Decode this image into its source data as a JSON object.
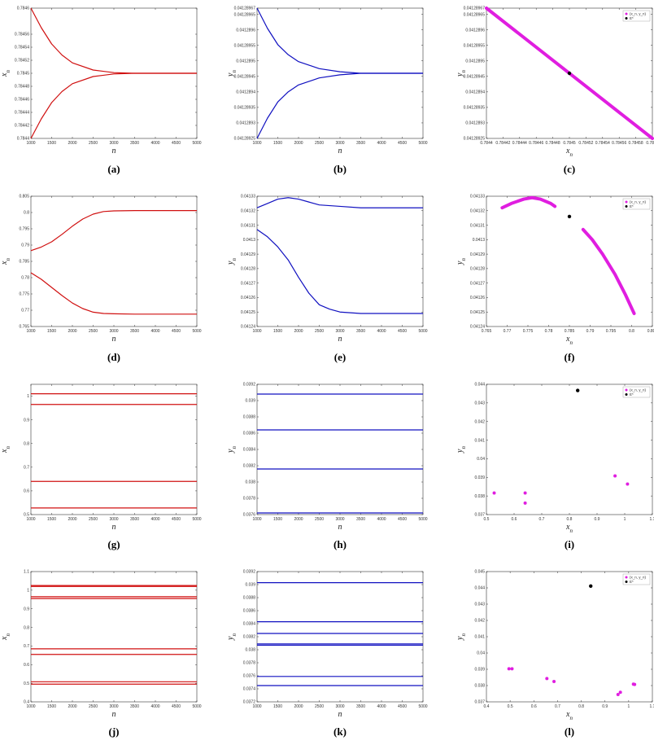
{
  "chart_data": [
    {
      "id": "a",
      "caption": "(a)",
      "type": "line",
      "xlabel": "n",
      "ylabel": "x_n",
      "xlim": [
        1000,
        5000
      ],
      "ylim": [
        0.7844,
        0.7846
      ],
      "xticks": [
        1000,
        1500,
        2000,
        2500,
        3000,
        3500,
        4000,
        4500,
        5000
      ],
      "yticks": [
        0.7844,
        0.78442,
        0.78444,
        0.78446,
        0.78448,
        0.7845,
        0.78452,
        0.78454,
        0.78456,
        0.7846
      ],
      "color": "#d01010",
      "series": [
        {
          "x": [
            1000,
            1250,
            1500,
            1750,
            2000,
            2500,
            3000,
            3500,
            4000,
            5000
          ],
          "y": [
            0.7846,
            0.78457,
            0.784545,
            0.784528,
            0.784516,
            0.784505,
            0.784501,
            0.7845,
            0.7845,
            0.7845
          ]
        },
        {
          "x": [
            1000,
            1250,
            1500,
            1750,
            2000,
            2500,
            3000,
            3500,
            4000,
            5000
          ],
          "y": [
            0.7844,
            0.78443,
            0.784455,
            0.784472,
            0.784484,
            0.784495,
            0.784499,
            0.7845,
            0.7845,
            0.7845
          ]
        }
      ]
    },
    {
      "id": "b",
      "caption": "(b)",
      "type": "line",
      "xlabel": "n",
      "ylabel": "y_n",
      "xlim": [
        1000,
        5000
      ],
      "ylim": [
        0.04128925,
        0.04128967
      ],
      "xticks": [
        1000,
        1500,
        2000,
        2500,
        3000,
        3500,
        4000,
        4500,
        5000
      ],
      "yticks": [
        0.04128925,
        0.0412893,
        0.04128935,
        0.0412894,
        0.04128945,
        0.0412895,
        0.04128955,
        0.0412896,
        0.04128965,
        0.04128967
      ],
      "ytick_labels": [
        "0.04128925",
        "0.0412893",
        "0.04128935",
        "0.0412894",
        "0.04128945",
        "0.0412895",
        "0.04128955",
        "0.0412896",
        "0.04128965",
        "0.04128967"
      ],
      "color": "#1010c0",
      "series": [
        {
          "x": [
            1000,
            1250,
            1500,
            1750,
            2000,
            2500,
            3000,
            3500,
            4000,
            5000
          ],
          "y": [
            0.04128967,
            0.041289605,
            0.0412895525,
            0.04128952,
            0.0412894975,
            0.041289475,
            0.041289465,
            0.04128946,
            0.04128946,
            0.04128946
          ]
        },
        {
          "x": [
            1000,
            1250,
            1500,
            1750,
            2000,
            2500,
            3000,
            3500,
            4000,
            5000
          ],
          "y": [
            0.04128925,
            0.041289315,
            0.0412893675,
            0.0412894,
            0.0412894225,
            0.041289445,
            0.041289455,
            0.04128946,
            0.04128946,
            0.04128946
          ]
        }
      ]
    },
    {
      "id": "c",
      "caption": "(c)",
      "type": "scatter",
      "xlabel": "x_n",
      "ylabel": "y_n",
      "xlim": [
        0.7844,
        0.7846
      ],
      "ylim": [
        0.04128925,
        0.04128967
      ],
      "xticks": [
        0.7844,
        0.78442,
        0.78444,
        0.78446,
        0.78448,
        0.7845,
        0.78452,
        0.78454,
        0.78456,
        0.78458,
        0.7846
      ],
      "xtick_labels": [
        "0.7844",
        "0.78442",
        "0.78444",
        "0.78446",
        "0.78448",
        "0.7845",
        "0.78452",
        "0.78454",
        "0.78456",
        "0.78458",
        "0.7846"
      ],
      "yticks": [
        0.04128925,
        0.0412893,
        0.04128935,
        0.0412894,
        0.04128945,
        0.0412895,
        0.04128955,
        0.0412896,
        0.04128965,
        0.04128967
      ],
      "ytick_labels": [
        "0.04128925",
        "0.0412893",
        "0.04128935",
        "0.0412894",
        "0.04128945",
        "0.0412895",
        "0.04128955",
        "0.0412896",
        "0.04128965",
        "0.04128967"
      ],
      "legend": [
        "(x_n, y_n)",
        "E*"
      ],
      "legend_position": "top-right",
      "magenta_segments": [
        {
          "x": [
            0.7844,
            0.7846
          ],
          "y": [
            0.04128967,
            0.04128925
          ]
        }
      ],
      "fixed_point": {
        "x": 0.7845,
        "y": 0.04128946
      }
    },
    {
      "id": "d",
      "caption": "(d)",
      "type": "line",
      "xlabel": "n",
      "ylabel": "x_n",
      "xlim": [
        1000,
        5000
      ],
      "ylim": [
        0.765,
        0.805
      ],
      "xticks": [
        1000,
        1500,
        2000,
        2500,
        3000,
        3500,
        4000,
        4500,
        5000
      ],
      "yticks": [
        0.765,
        0.77,
        0.775,
        0.78,
        0.785,
        0.79,
        0.795,
        0.8,
        0.805
      ],
      "color": "#d01010",
      "series": [
        {
          "x": [
            1000,
            1250,
            1500,
            1750,
            2000,
            2250,
            2500,
            2750,
            3000,
            3500,
            4000,
            5000
          ],
          "y": [
            0.7883,
            0.7894,
            0.791,
            0.7933,
            0.7958,
            0.798,
            0.7995,
            0.8003,
            0.8005,
            0.8006,
            0.8006,
            0.8006
          ]
        },
        {
          "x": [
            1000,
            1250,
            1500,
            1750,
            2000,
            2250,
            2500,
            2750,
            3000,
            3500,
            4000,
            5000
          ],
          "y": [
            0.7815,
            0.7795,
            0.777,
            0.7745,
            0.7722,
            0.7705,
            0.7694,
            0.769,
            0.7689,
            0.7688,
            0.7688,
            0.7688
          ]
        }
      ]
    },
    {
      "id": "e",
      "caption": "(e)",
      "type": "line",
      "xlabel": "n",
      "ylabel": "y_n",
      "xlim": [
        1000,
        5000
      ],
      "ylim": [
        0.04124,
        0.04133
      ],
      "xticks": [
        1000,
        1500,
        2000,
        2500,
        3000,
        3500,
        4000,
        4500,
        5000
      ],
      "yticks": [
        0.04124,
        0.04125,
        0.04126,
        0.04127,
        0.04128,
        0.04129,
        0.0413,
        0.04131,
        0.04132,
        0.04133
      ],
      "color": "#1010c0",
      "series": [
        {
          "x": [
            1000,
            1250,
            1500,
            1750,
            2000,
            2250,
            2500,
            3000,
            3500,
            4000,
            5000
          ],
          "y": [
            0.041322,
            0.041325,
            0.041328,
            0.041329,
            0.041328,
            0.041326,
            0.041324,
            0.041323,
            0.041322,
            0.041322,
            0.041322
          ]
        },
        {
          "x": [
            1000,
            1250,
            1500,
            1750,
            2000,
            2250,
            2500,
            2750,
            3000,
            3500,
            4000,
            5000
          ],
          "y": [
            0.041307,
            0.041302,
            0.041295,
            0.041286,
            0.041274,
            0.041263,
            0.041255,
            0.041252,
            0.04125,
            0.041249,
            0.041249,
            0.041249
          ]
        }
      ]
    },
    {
      "id": "f",
      "caption": "(f)",
      "type": "scatter",
      "xlabel": "x_n",
      "ylabel": "y_n",
      "xlim": [
        0.765,
        0.805
      ],
      "ylim": [
        0.04124,
        0.04133
      ],
      "xticks": [
        0.765,
        0.77,
        0.775,
        0.78,
        0.785,
        0.79,
        0.795,
        0.8,
        0.805
      ],
      "yticks": [
        0.04124,
        0.04125,
        0.04126,
        0.04127,
        0.04128,
        0.04129,
        0.0413,
        0.04131,
        0.04132,
        0.04133
      ],
      "legend": [
        "(x_n, y_n)",
        "E*"
      ],
      "legend_position": "top-right",
      "magenta_segments": [
        {
          "x": [
            0.7688,
            0.771,
            0.774,
            0.776,
            0.778,
            0.7805,
            0.7815
          ],
          "y": [
            0.041322,
            0.041325,
            0.041328,
            0.041329,
            0.041328,
            0.041325,
            0.041323
          ]
        },
        {
          "x": [
            0.7883,
            0.7905,
            0.793,
            0.796,
            0.7985,
            0.8006
          ],
          "y": [
            0.041307,
            0.0413,
            0.04129,
            0.041276,
            0.041262,
            0.041249
          ]
        }
      ],
      "fixed_point": {
        "x": 0.785,
        "y": 0.041316
      }
    },
    {
      "id": "g",
      "caption": "(g)",
      "type": "line",
      "xlabel": "n",
      "ylabel": "x_n",
      "xlim": [
        1000,
        5000
      ],
      "ylim": [
        0.5,
        1.05
      ],
      "xticks": [
        1000,
        1500,
        2000,
        2500,
        3000,
        3500,
        4000,
        4500,
        5000
      ],
      "yticks": [
        0.5,
        0.6,
        0.7,
        0.8,
        0.9,
        1
      ],
      "color": "#d01010",
      "levels": [
        1.01,
        0.965,
        0.64,
        0.528
      ]
    },
    {
      "id": "h",
      "caption": "(h)",
      "type": "line",
      "xlabel": "n",
      "ylabel": "y_n",
      "xlim": [
        1000,
        5000
      ],
      "ylim": [
        0.0376,
        0.0392
      ],
      "xticks": [
        1000,
        1500,
        2000,
        2500,
        3000,
        3500,
        4000,
        4500,
        5000
      ],
      "yticks": [
        0.0376,
        0.0378,
        0.038,
        0.0382,
        0.0384,
        0.0386,
        0.0388,
        0.039,
        0.0392
      ],
      "color": "#1010c0",
      "levels": [
        0.03908,
        0.03864,
        0.03816,
        0.03762
      ]
    },
    {
      "id": "i",
      "caption": "(i)",
      "type": "scatter",
      "xlabel": "x_n",
      "ylabel": "y_n",
      "xlim": [
        0.5,
        1.1
      ],
      "ylim": [
        0.037,
        0.044
      ],
      "xticks": [
        0.5,
        0.6,
        0.7,
        0.8,
        0.9,
        1,
        1.1
      ],
      "yticks": [
        0.037,
        0.038,
        0.039,
        0.04,
        0.041,
        0.042,
        0.043,
        0.044
      ],
      "legend": [
        "(x_n, y_n)",
        "E*"
      ],
      "legend_position": "top-right",
      "points": [
        {
          "x": 0.528,
          "y": 0.03816
        },
        {
          "x": 0.64,
          "y": 0.03762
        },
        {
          "x": 0.965,
          "y": 0.03908
        },
        {
          "x": 1.01,
          "y": 0.03864
        },
        {
          "x": 0.64,
          "y": 0.03816
        }
      ],
      "fixed_point": {
        "x": 0.83,
        "y": 0.04367
      }
    },
    {
      "id": "j",
      "caption": "(j)",
      "type": "line",
      "xlabel": "n",
      "ylabel": "x_n",
      "xlim": [
        1000,
        5000
      ],
      "ylim": [
        0.4,
        1.1
      ],
      "xticks": [
        1000,
        1500,
        2000,
        2500,
        3000,
        3500,
        4000,
        4500,
        5000
      ],
      "yticks": [
        0.4,
        0.5,
        0.6,
        0.7,
        0.8,
        0.9,
        1,
        1.1
      ],
      "color": "#d01010",
      "levels": [
        1.025,
        1.02,
        0.965,
        0.955,
        0.685,
        0.655,
        0.508,
        0.495
      ]
    },
    {
      "id": "k",
      "caption": "(k)",
      "type": "line",
      "xlabel": "n",
      "ylabel": "y_n",
      "xlim": [
        1000,
        5000
      ],
      "ylim": [
        0.0372,
        0.0392
      ],
      "xticks": [
        1000,
        1500,
        2000,
        2500,
        3000,
        3500,
        4000,
        4500,
        5000
      ],
      "yticks": [
        0.0372,
        0.0374,
        0.0376,
        0.0378,
        0.038,
        0.0382,
        0.0384,
        0.0386,
        0.0388,
        0.039,
        0.0392
      ],
      "color": "#1010c0",
      "levels": [
        0.03903,
        0.03843,
        0.03825,
        0.03809,
        0.03807,
        0.03759,
        0.03745
      ]
    },
    {
      "id": "l",
      "caption": "(l)",
      "type": "scatter",
      "xlabel": "x_n",
      "ylabel": "y_n",
      "xlim": [
        0.4,
        1.1
      ],
      "ylim": [
        0.037,
        0.045
      ],
      "xticks": [
        0.4,
        0.5,
        0.6,
        0.7,
        0.8,
        0.9,
        1,
        1.1
      ],
      "yticks": [
        0.037,
        0.038,
        0.039,
        0.04,
        0.041,
        0.042,
        0.043,
        0.044,
        0.045
      ],
      "legend": [
        "(x_n, y_n)",
        "E*"
      ],
      "legend_position": "top-right",
      "points": [
        {
          "x": 0.495,
          "y": 0.03903
        },
        {
          "x": 0.508,
          "y": 0.03903
        },
        {
          "x": 0.655,
          "y": 0.03843
        },
        {
          "x": 0.685,
          "y": 0.03825
        },
        {
          "x": 0.955,
          "y": 0.03745
        },
        {
          "x": 0.965,
          "y": 0.03759
        },
        {
          "x": 1.02,
          "y": 0.03809
        },
        {
          "x": 1.025,
          "y": 0.03807
        }
      ],
      "fixed_point": {
        "x": 0.84,
        "y": 0.04411
      }
    }
  ]
}
